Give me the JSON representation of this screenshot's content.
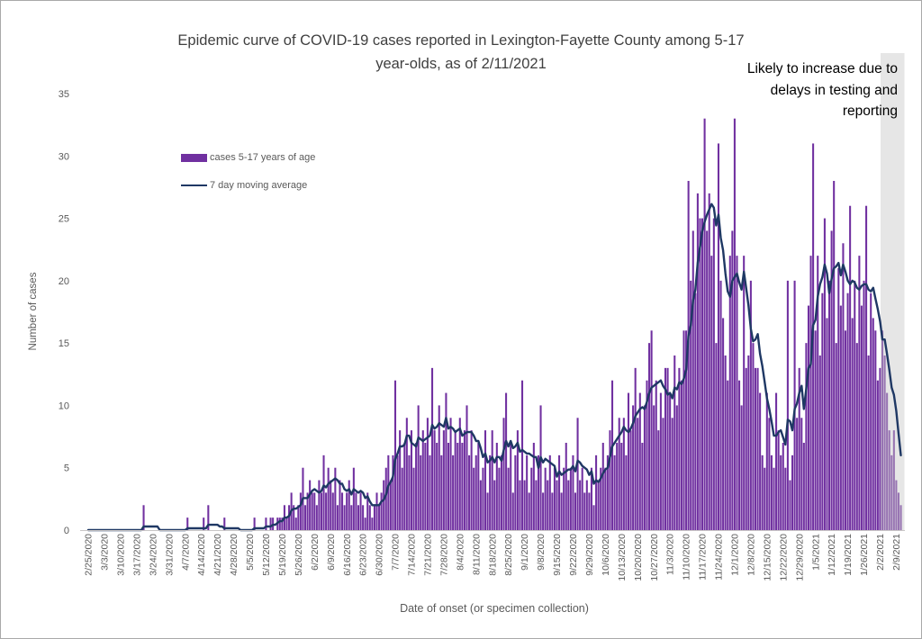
{
  "title": {
    "line1": "Epidemic curve of COVID-19 cases reported in Lexington-Fayette County among 5-17",
    "line2": "year-olds, as of 2/11/2021"
  },
  "annotation": {
    "lines": [
      "Likely to increase due to",
      "delays in testing and",
      "reporting"
    ]
  },
  "legend": {
    "items": [
      {
        "label": "cases 5-17 years of age",
        "color": "#7030A0"
      },
      {
        "label": "7 day moving average",
        "color": "#1F3864"
      }
    ]
  },
  "chart_data": {
    "type": "bar",
    "title": "Epidemic curve of COVID-19 cases reported in Lexington-Fayette County among 5-17 year-olds, as of 2/11/2021",
    "xlabel": "Date of onset (or specimen collection)",
    "ylabel": "Number of cases",
    "ylim": [
      0,
      35
    ],
    "y_ticks": [
      0,
      5,
      10,
      15,
      20,
      25,
      30,
      35
    ],
    "x_start_date": "2/25/2020",
    "x_end_date": "2/11/2021",
    "x_tick_interval": "7 days",
    "x_tick_labels": [
      "2/25/2020",
      "3/3/2020",
      "3/10/2020",
      "3/17/2020",
      "3/24/2020",
      "3/31/2020",
      "4/7/2020",
      "4/14/2020",
      "4/21/2020",
      "4/28/2020",
      "5/5/2020",
      "5/12/2020",
      "5/19/2020",
      "5/26/2020",
      "6/2/2020",
      "6/9/2020",
      "6/16/2020",
      "6/23/2020",
      "6/30/2020",
      "7/7/2020",
      "7/14/2020",
      "7/21/2020",
      "7/28/2020",
      "8/4/2020",
      "8/11/2020",
      "8/18/2020",
      "8/25/2020",
      "9/1/2020",
      "9/8/2020",
      "9/15/2020",
      "9/22/2020",
      "9/29/2020",
      "10/6/2020",
      "10/13/2020",
      "10/20/2020",
      "10/27/2020",
      "11/3/2020",
      "11/10/2020",
      "11/17/2020",
      "11/24/2020",
      "12/1/2020",
      "12/8/2020",
      "12/15/2020",
      "12/22/2020",
      "12/29/2020",
      "1/5/2021",
      "1/12/2021",
      "1/19/2021",
      "1/26/2021",
      "2/2/2021",
      "2/9/2021"
    ],
    "series": [
      {
        "name": "cases 5-17 years of age",
        "type": "bar",
        "color": "#7030A0",
        "values": [
          0,
          0,
          0,
          0,
          0,
          0,
          0,
          0,
          0,
          0,
          0,
          0,
          0,
          0,
          0,
          0,
          0,
          0,
          0,
          0,
          0,
          0,
          0,
          0,
          2,
          0,
          0,
          0,
          0,
          0,
          0,
          0,
          0,
          0,
          0,
          0,
          0,
          0,
          0,
          0,
          0,
          0,
          0,
          1,
          0,
          0,
          0,
          0,
          0,
          0,
          1,
          0,
          2,
          0,
          0,
          0,
          0,
          0,
          0,
          1,
          0,
          0,
          0,
          0,
          0,
          0,
          0,
          0,
          0,
          0,
          0,
          0,
          1,
          0,
          0,
          0,
          0,
          1,
          0,
          1,
          1,
          0,
          1,
          1,
          1,
          2,
          1,
          2,
          3,
          2,
          1,
          2,
          3,
          5,
          2,
          3,
          4,
          3,
          3,
          2,
          4,
          3,
          6,
          3,
          5,
          4,
          3,
          5,
          2,
          4,
          3,
          2,
          3,
          4,
          2,
          5,
          3,
          2,
          3,
          2,
          1,
          3,
          2,
          1,
          2,
          3,
          2,
          3,
          4,
          5,
          6,
          4,
          6,
          12,
          6,
          8,
          5,
          7,
          9,
          6,
          8,
          5,
          7,
          10,
          6,
          8,
          7,
          9,
          6,
          13,
          8,
          7,
          10,
          6,
          8,
          11,
          7,
          9,
          6,
          8,
          7,
          9,
          7,
          8,
          10,
          6,
          8,
          5,
          6,
          7,
          4,
          5,
          8,
          3,
          6,
          8,
          4,
          7,
          5,
          6,
          9,
          11,
          5,
          7,
          3,
          6,
          8,
          4,
          12,
          4,
          6,
          3,
          5,
          7,
          4,
          6,
          10,
          3,
          5,
          4,
          6,
          3,
          5,
          4,
          6,
          3,
          5,
          7,
          4,
          5,
          6,
          3,
          9,
          4,
          5,
          3,
          4,
          3,
          5,
          2,
          6,
          4,
          5,
          7,
          5,
          6,
          8,
          12,
          6,
          7,
          9,
          7,
          9,
          6,
          11,
          8,
          10,
          13,
          9,
          11,
          7,
          10,
          12,
          15,
          16,
          10,
          12,
          8,
          11,
          9,
          13,
          13,
          11,
          9,
          14,
          10,
          13,
          12,
          16,
          16,
          28,
          20,
          24,
          19,
          27,
          25,
          25,
          33,
          24,
          27,
          22,
          25,
          15,
          31,
          20,
          17,
          14,
          12,
          22,
          24,
          33,
          22,
          12,
          10,
          22,
          13,
          14,
          20,
          15,
          13,
          13,
          11,
          6,
          5,
          11,
          9,
          6,
          5,
          11,
          8,
          6,
          7,
          5,
          20,
          4,
          6,
          20,
          9,
          13,
          9,
          7,
          15,
          18,
          22,
          31,
          16,
          22,
          14,
          19,
          25,
          17,
          20,
          24,
          28,
          15,
          21,
          18,
          23,
          16,
          19,
          26,
          17,
          20,
          15,
          22,
          18,
          20,
          26,
          14,
          19,
          17,
          16,
          12,
          13,
          16,
          14,
          11,
          8,
          6,
          8,
          4,
          3,
          2
        ]
      },
      {
        "name": "7 day moving average",
        "type": "line",
        "color": "#1F3864",
        "derived": "7-day trailing moving average of the daily bar values"
      }
    ],
    "shaded_region": {
      "start_date": "2/3/2021",
      "end_date": "2/11/2021",
      "color": "#D9D9D9",
      "note": "Likely to increase due to delays in testing and reporting"
    },
    "grid": "off",
    "legend_position": "upper-left inside plot"
  }
}
